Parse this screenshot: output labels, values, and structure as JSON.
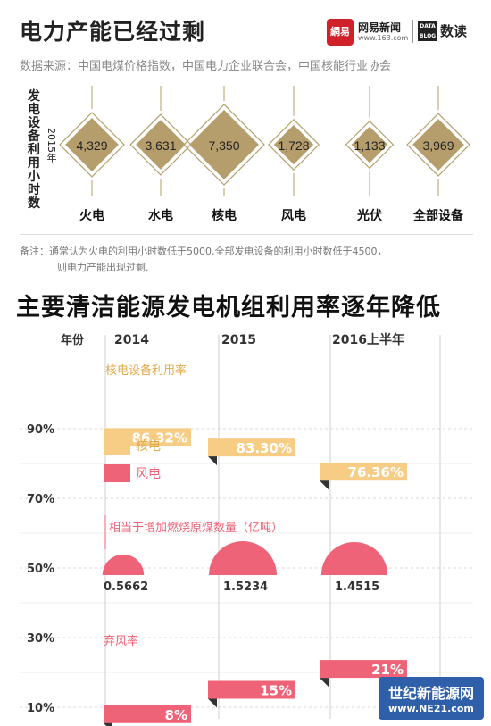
{
  "header": {
    "title": "电力产能已经过剩",
    "logo_mark": "網易",
    "logo_name": "网易新闻",
    "logo_url": "www.163.com",
    "logo_data": "DATA BLOG",
    "logo_shudu": "数读",
    "source": "数据来源：中国电煤价格指数，中国电力企业联合会，中国核能行业协会"
  },
  "top_chart": {
    "y_label": "发电设备利用小时数",
    "year_label": "2015年",
    "note_line1": "备注：通常认为火电的利用小时数低于5000,全部发电设备的利用小时数低于4500，",
    "note_line2": "则电力产能出现过剩."
  },
  "bottom_chart": {
    "title": "主要清洁能源发电机组利用率逐年降低",
    "year_header": "年份",
    "nuclear_label": "核电设备利用率",
    "wind_label": "弃风率",
    "coal_label": "相当于增加燃烧原煤数量（亿吨）",
    "legend_nuclear": "核电",
    "legend_wind": "风电"
  },
  "watermark": {
    "line1": "世纪新能源网",
    "line2": "www.NE21.com"
  },
  "colors": {
    "diamond": "#b59e6b",
    "nuclear": "#f7cd86",
    "wind": "#ee6377",
    "grid": "#d8d8d8"
  },
  "chart_data": [
    {
      "type": "scatter",
      "title": "",
      "ylabel": "发电设备利用小时数",
      "categories": [
        "火电",
        "水电",
        "核电",
        "风电",
        "光伏",
        "全部设备"
      ],
      "values": [
        4329,
        3631,
        7350,
        1728,
        1133,
        3969
      ],
      "value_labels": [
        "4,329",
        "3,631",
        "7,350",
        "1,728",
        "1,133",
        "3,969"
      ]
    },
    {
      "type": "bar",
      "title": "主要清洁能源发电机组利用率逐年降低",
      "xlabel": "年份",
      "categories": [
        "2014",
        "2015",
        "2016上半年"
      ],
      "y_ticks": [
        "90%",
        "70%",
        "50%",
        "30%",
        "10%"
      ],
      "ylim": [
        0,
        100
      ],
      "series": [
        {
          "name": "核电设备利用率",
          "values": [
            86.32,
            83.3,
            76.36
          ],
          "labels": [
            "86.32%",
            "83.30%",
            "76.36%"
          ]
        },
        {
          "name": "弃风率",
          "values": [
            8,
            15,
            21
          ],
          "labels": [
            "8%",
            "15%",
            "21%"
          ]
        }
      ],
      "coal": {
        "name": "相当于增加燃烧原煤数量（亿吨）",
        "values": [
          0.5662,
          1.5234,
          1.4515
        ],
        "labels": [
          "0.5662",
          "1.5234",
          "1.4515"
        ]
      }
    }
  ]
}
